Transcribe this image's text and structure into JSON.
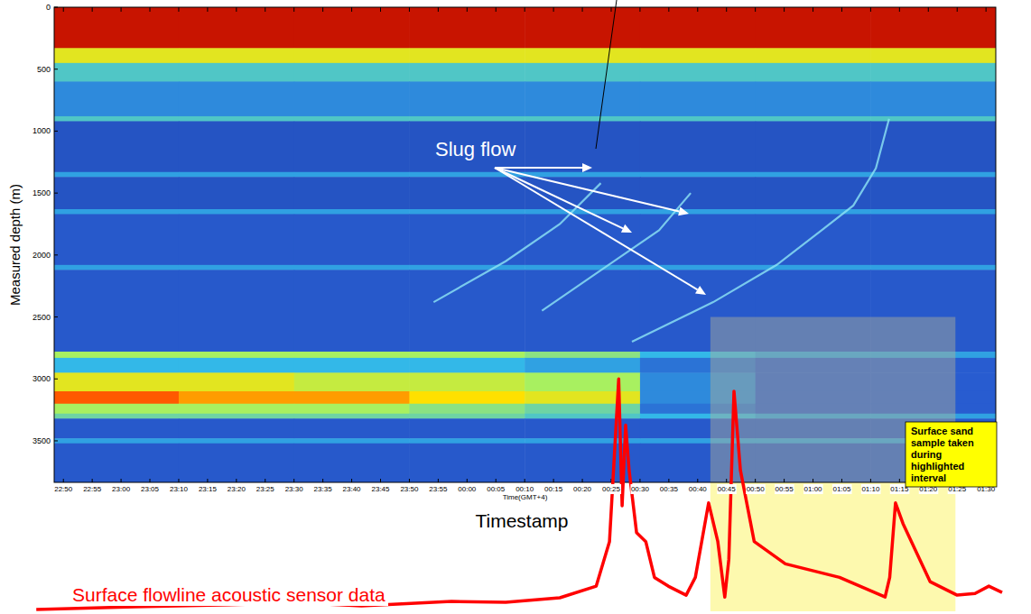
{
  "chart_data": [
    {
      "type": "heatmap",
      "x_label": "Time(GMT+4)",
      "y_label": "Measured depth (m)",
      "annotation": "Slug flow",
      "xlim": [
        -1.6,
        161.7
      ],
      "ylim": [
        0,
        3835
      ],
      "xticks": [
        {
          "value": 0,
          "label": "22:50"
        },
        {
          "value": 5,
          "label": "22:55"
        },
        {
          "value": 10,
          "label": "23:00"
        },
        {
          "value": 15,
          "label": "23:05"
        },
        {
          "value": 20,
          "label": "23:10"
        },
        {
          "value": 25,
          "label": "23:15"
        },
        {
          "value": 30,
          "label": "23:20"
        },
        {
          "value": 35,
          "label": "23:25"
        },
        {
          "value": 40,
          "label": "23:30"
        },
        {
          "value": 45,
          "label": "23:35"
        },
        {
          "value": 50,
          "label": "23:40"
        },
        {
          "value": 55,
          "label": "23:45"
        },
        {
          "value": 60,
          "label": "23:50"
        },
        {
          "value": 65,
          "label": "23:55"
        },
        {
          "value": 70,
          "label": "00:00"
        },
        {
          "value": 75,
          "label": "00:05"
        },
        {
          "value": 80,
          "label": "00:10"
        },
        {
          "value": 85,
          "label": "00:15"
        },
        {
          "value": 90,
          "label": "00:20"
        },
        {
          "value": 95,
          "label": "00:25"
        },
        {
          "value": 100,
          "label": "00:30"
        },
        {
          "value": 105,
          "label": "00:35"
        },
        {
          "value": 110,
          "label": "00:40"
        },
        {
          "value": 115,
          "label": "00:45"
        },
        {
          "value": 120,
          "label": "00:50"
        },
        {
          "value": 125,
          "label": "00:55"
        },
        {
          "value": 130,
          "label": "01:00"
        },
        {
          "value": 135,
          "label": "01:05"
        },
        {
          "value": 140,
          "label": "01:10"
        },
        {
          "value": 145,
          "label": "01:15"
        },
        {
          "value": 150,
          "label": "01:20"
        },
        {
          "value": 155,
          "label": "01:25"
        },
        {
          "value": 160,
          "label": "01:30"
        }
      ],
      "yticks": [
        0,
        500,
        1000,
        1500,
        2000,
        2500,
        3000,
        3500
      ],
      "x_bins": [
        -1.6,
        20,
        40,
        60,
        80,
        100,
        120,
        140,
        161.7
      ],
      "y_bins": [
        0,
        330,
        450,
        600,
        880,
        920,
        1330,
        1370,
        1630,
        1670,
        2080,
        2120,
        2780,
        2830,
        2950,
        3100,
        3200,
        3280,
        3320,
        3480,
        3520,
        3835
      ],
      "cell_range": [
        0,
        10
      ],
      "cells": [
        [
          9.5,
          9.5,
          9.5,
          9.5,
          9.5,
          9.5,
          9.5,
          9.5
        ],
        [
          7,
          7,
          7,
          7,
          7,
          7,
          7,
          7
        ],
        [
          4.5,
          4.5,
          4.5,
          4.5,
          4.5,
          4.5,
          4.5,
          4.5
        ],
        [
          3,
          3,
          3,
          3,
          3,
          3,
          3,
          3
        ],
        [
          4.5,
          4.5,
          4.5,
          4.5,
          4.5,
          4.5,
          4.5,
          4.5
        ],
        [
          1.5,
          1.5,
          1.5,
          1.5,
          1.5,
          1.5,
          1.5,
          1.5
        ],
        [
          3.5,
          3.5,
          3.5,
          3.5,
          3.5,
          3.5,
          3.5,
          3.5
        ],
        [
          1.5,
          1.5,
          1.5,
          1.5,
          1.5,
          1.5,
          1.5,
          1.5
        ],
        [
          3.5,
          3.5,
          3.5,
          3.5,
          3.5,
          3.5,
          3.5,
          3.5
        ],
        [
          1.8,
          1.8,
          1.8,
          1.8,
          1.8,
          1.8,
          1.8,
          1.8
        ],
        [
          3.5,
          3.5,
          3.5,
          3.5,
          3.5,
          3.5,
          3.5,
          3.5
        ],
        [
          1.8,
          1.8,
          1.8,
          1.8,
          1.8,
          1.8,
          1.8,
          1.8
        ],
        [
          6,
          6,
          6,
          6,
          5.5,
          4,
          3.5,
          3.5
        ],
        [
          4,
          4,
          4,
          4,
          3.5,
          2.5,
          2,
          2
        ],
        [
          7,
          7,
          6.5,
          6.5,
          6,
          3,
          2,
          2
        ],
        [
          8.5,
          8,
          8,
          7.5,
          7,
          3,
          2,
          2
        ],
        [
          6,
          6,
          6,
          5.5,
          5,
          2.5,
          2,
          2
        ],
        [
          5,
          5,
          5,
          5,
          4.5,
          4,
          3.5,
          3.5
        ],
        [
          1.8,
          1.8,
          1.8,
          1.8,
          1.8,
          1.8,
          1.8,
          1.8
        ],
        [
          3.5,
          3.5,
          3.5,
          3.5,
          3.5,
          3.5,
          3.5,
          3.5
        ],
        [
          1.8,
          1.8,
          1.8,
          1.8,
          1.8,
          1.8,
          1.8,
          1.8
        ]
      ],
      "tracks": [
        {
          "color": "#8fe6f5",
          "x": [
            64.2,
            76.7,
            86.1,
            93.2
          ],
          "y": [
            2380,
            2050,
            1750,
            1420
          ]
        },
        {
          "color": "#8fe6f5",
          "x": [
            83,
            95.5,
            103.3,
            108.8
          ],
          "y": [
            2450,
            2050,
            1800,
            1500
          ]
        },
        {
          "color": "#8fe6f5",
          "x": [
            98.6,
            112.7,
            123.7,
            131.5,
            137,
            140.9,
            143.2
          ],
          "y": [
            2700,
            2380,
            2080,
            1800,
            1600,
            1300,
            900
          ]
        }
      ]
    },
    {
      "type": "line",
      "title": "Surface flowline acoustic sensor data",
      "x_label": "Timestamp",
      "color": "#ff0000",
      "tick_labels": false,
      "xlim": [
        -5,
        163.5
      ],
      "ylim": [
        0,
        100
      ],
      "x": [
        -4.7,
        12.5,
        32.9,
        36,
        39.1,
        51.7,
        67.3,
        76.7,
        86.1,
        92.4,
        94.7,
        96.3,
        96.9,
        97.5,
        98.1,
        99.4,
        101,
        102.5,
        104.9,
        108,
        109.6,
        111.9,
        113.5,
        114.7,
        115.4,
        116.3,
        117.4,
        119.8,
        125.2,
        134.6,
        142.5,
        143.3,
        144.3,
        145.6,
        150.3,
        155,
        158.1,
        160.5,
        162.8
      ],
      "values": [
        0.8,
        1.9,
        3,
        5.3,
        3.8,
        2.3,
        4.2,
        3.8,
        5.7,
        10.6,
        29.4,
        98,
        44.5,
        78.5,
        59.6,
        33.2,
        29.4,
        14.3,
        10.6,
        6.8,
        14.3,
        45.7,
        29.4,
        6,
        21.9,
        92.8,
        59.6,
        29.4,
        20,
        14.3,
        6,
        14.3,
        45.7,
        37,
        12.5,
        6.8,
        7.5,
        10.6,
        7.9
      ]
    }
  ],
  "highlight": {
    "x": [
      112.2,
      154.7
    ],
    "depth": 2500,
    "label": "Surface sand sample taken during highlighted interval"
  }
}
